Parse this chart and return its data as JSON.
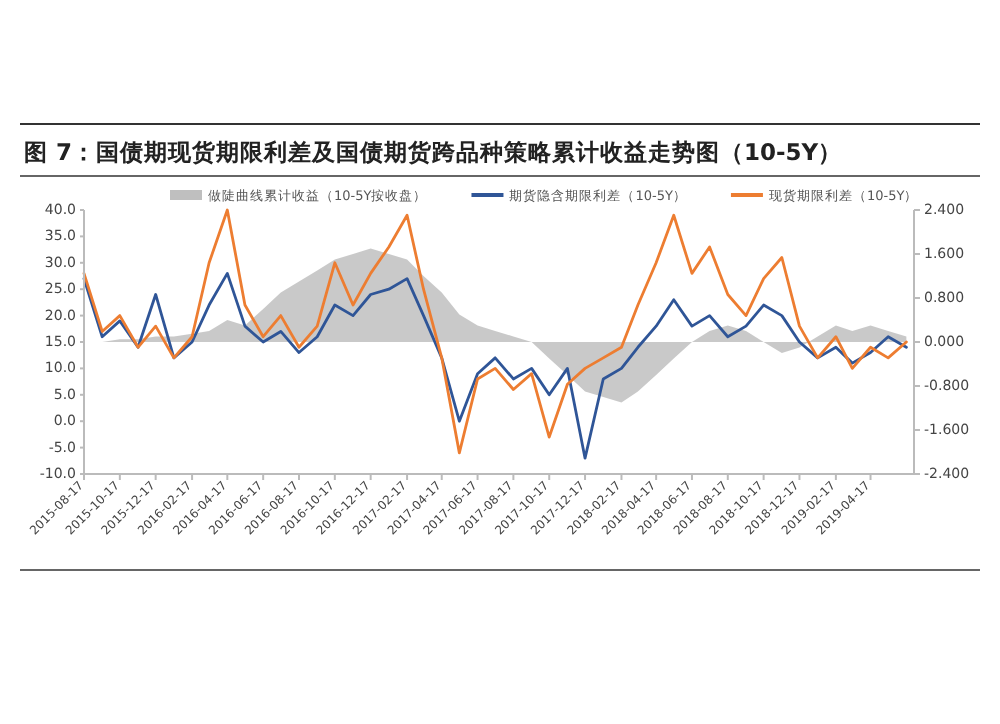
{
  "chart_data": {
    "type": "line",
    "title": "图 7：国债期现货期限利差及国债期货跨品种策略累计收益走势图（10-5Y）",
    "legend": "top",
    "grid": false,
    "x": [
      "2015-08-17",
      "2015-09-17",
      "2015-10-17",
      "2015-11-17",
      "2015-12-17",
      "2016-01-17",
      "2016-02-17",
      "2016-03-17",
      "2016-04-17",
      "2016-05-17",
      "2016-06-17",
      "2016-07-17",
      "2016-08-17",
      "2016-09-17",
      "2016-10-17",
      "2016-11-17",
      "2016-12-17",
      "2017-01-17",
      "2017-02-17",
      "2017-03-17",
      "2017-04-17",
      "2017-05-17",
      "2017-06-17",
      "2017-07-17",
      "2017-08-17",
      "2017-09-17",
      "2017-10-17",
      "2017-11-17",
      "2017-12-17",
      "2018-01-17",
      "2018-02-17",
      "2018-03-17",
      "2018-04-17",
      "2018-05-17",
      "2018-06-17",
      "2018-07-17",
      "2018-08-17",
      "2018-09-17",
      "2018-10-17",
      "2018-11-17",
      "2018-12-17",
      "2019-01-17",
      "2019-02-17",
      "2019-03-17",
      "2019-04-17",
      "2019-05-17",
      "2019-06-17"
    ],
    "series": [
      {
        "name": "做陡曲线累计收益（10-5Y按收盘）",
        "type": "area",
        "axis": "y2",
        "color": "#bfbfbf",
        "values": [
          0.0,
          0.0,
          0.05,
          0.05,
          0.1,
          0.1,
          0.15,
          0.2,
          0.4,
          0.3,
          0.6,
          0.9,
          1.1,
          1.3,
          1.5,
          1.6,
          1.7,
          1.6,
          1.5,
          1.2,
          0.9,
          0.5,
          0.3,
          0.2,
          0.1,
          0.0,
          -0.3,
          -0.6,
          -0.9,
          -1.0,
          -1.1,
          -0.9,
          -0.6,
          -0.3,
          0.0,
          0.2,
          0.3,
          0.2,
          0.0,
          -0.2,
          -0.1,
          0.1,
          0.3,
          0.2,
          0.3,
          0.2,
          0.1
        ]
      },
      {
        "name": "期货隐含期限利差（10-5Y）",
        "type": "line",
        "color": "#2f5597",
        "values": [
          27,
          16,
          19,
          14,
          24,
          12,
          15,
          22,
          28,
          18,
          15,
          17,
          13,
          16,
          22,
          20,
          24,
          25,
          27,
          20,
          12,
          0,
          9,
          12,
          8,
          10,
          5,
          10,
          -7,
          8,
          10,
          14,
          18,
          23,
          18,
          20,
          16,
          18,
          22,
          20,
          15,
          12,
          14,
          11,
          13,
          16,
          14
        ]
      },
      {
        "name": "现货期限利差（10-5Y）",
        "type": "line",
        "color": "#ed7d31",
        "values": [
          28,
          17,
          20,
          14,
          18,
          12,
          16,
          30,
          40,
          22,
          16,
          20,
          14,
          18,
          30,
          22,
          28,
          33,
          39,
          25,
          12,
          -6,
          8,
          10,
          6,
          9,
          -3,
          7,
          10,
          12,
          14,
          22,
          30,
          39,
          28,
          33,
          24,
          20,
          27,
          31,
          18,
          12,
          16,
          10,
          14,
          12,
          15
        ]
      }
    ],
    "xlim": [
      "2015-08-17",
      "2019-06-30"
    ],
    "xticks": [
      "2015-08-17",
      "2015-10-17",
      "2015-12-17",
      "2016-02-17",
      "2016-04-17",
      "2016-06-17",
      "2016-08-17",
      "2016-10-17",
      "2016-12-17",
      "2017-02-17",
      "2017-04-17",
      "2017-06-17",
      "2017-08-17",
      "2017-10-17",
      "2017-12-17",
      "2018-02-17",
      "2018-04-17",
      "2018-06-17",
      "2018-08-17",
      "2018-10-17",
      "2018-12-17",
      "2019-02-17",
      "2019-04-17"
    ],
    "ylim": [
      -10,
      40
    ],
    "yticks": [
      {
        "value": -10,
        "label": "-10.0"
      },
      {
        "value": -5,
        "label": "-5.0"
      },
      {
        "value": 0,
        "label": "0.0"
      },
      {
        "value": 5,
        "label": "5.0"
      },
      {
        "value": 10,
        "label": "10.0"
      },
      {
        "value": 15,
        "label": "15.0"
      },
      {
        "value": 20,
        "label": "20.0"
      },
      {
        "value": 25,
        "label": "25.0"
      },
      {
        "value": 30,
        "label": "30.0"
      },
      {
        "value": 35,
        "label": "35.0"
      },
      {
        "value": 40,
        "label": "40.0"
      }
    ],
    "y2lim": [
      -2.4,
      2.4
    ],
    "y2ticks": [
      {
        "value": -2.4,
        "label": "-2.400"
      },
      {
        "value": -1.6,
        "label": "-1.600"
      },
      {
        "value": -0.8,
        "label": "-0.800"
      },
      {
        "value": 0,
        "label": "0.000"
      },
      {
        "value": 0.8,
        "label": "0.800"
      },
      {
        "value": 1.6,
        "label": "1.600"
      },
      {
        "value": 2.4,
        "label": "2.400"
      }
    ]
  }
}
